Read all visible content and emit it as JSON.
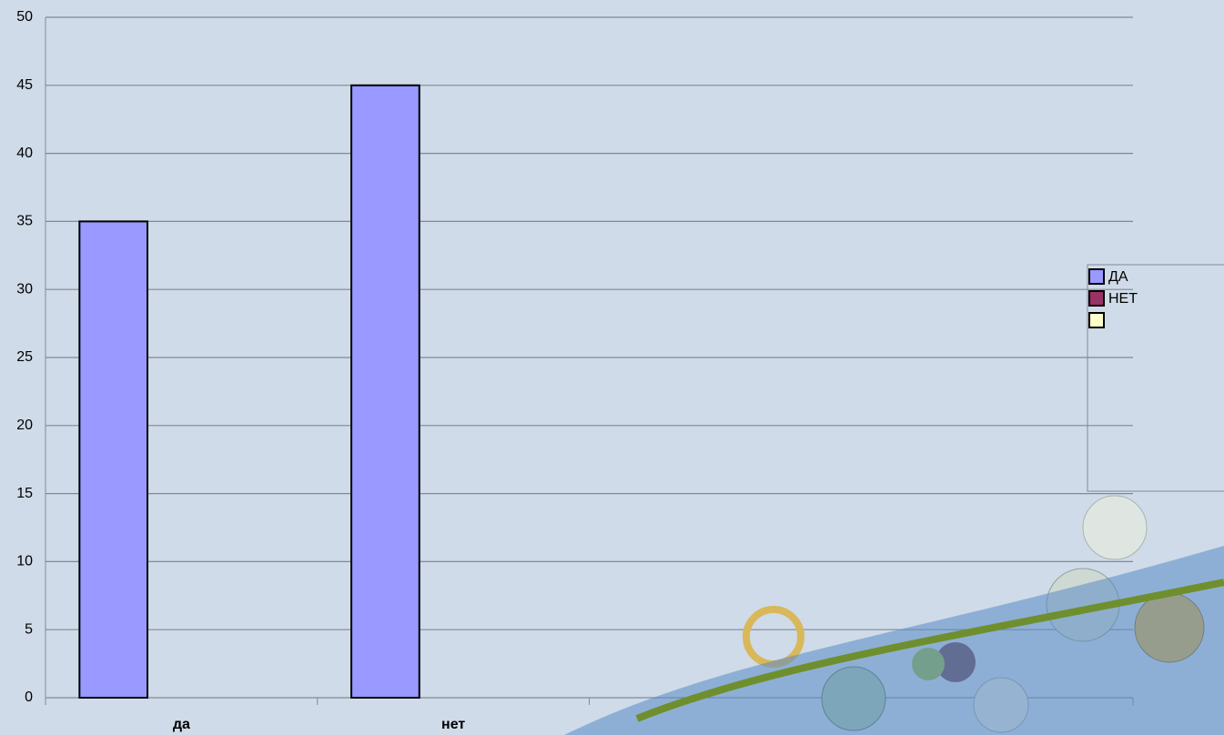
{
  "chart_data": {
    "type": "bar",
    "categories": [
      "да",
      "нет",
      null,
      null
    ],
    "series": [
      {
        "name": "ДА",
        "color": "#9999ff",
        "values": [
          35,
          45,
          0,
          0
        ]
      },
      {
        "name": "НЕТ",
        "color": "#993366",
        "values": [
          0,
          0,
          0,
          0
        ]
      },
      {
        "name": null,
        "color": "#ffffcc",
        "values": [
          0,
          0,
          0,
          0
        ]
      }
    ],
    "ylim": [
      0,
      50
    ],
    "yticks": [
      0,
      5,
      10,
      15,
      20,
      25,
      30,
      35,
      40,
      45,
      50
    ],
    "grid": true,
    "legend": "right"
  }
}
